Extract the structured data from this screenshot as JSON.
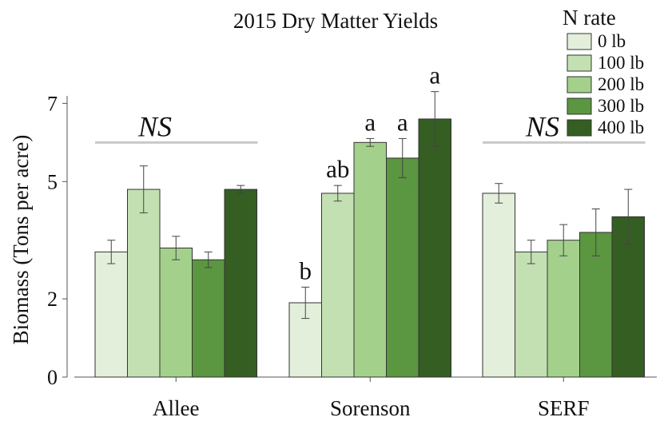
{
  "chart_data": {
    "type": "bar",
    "title": "2015 Dry Matter Yields",
    "xlabel": "",
    "ylabel": "Biomass (Tons per acre)",
    "yticks": [
      0,
      2,
      5,
      7
    ],
    "ylim": [
      0,
      7.6
    ],
    "categories": [
      "Allee",
      "Sorenson",
      "SERF"
    ],
    "legend": {
      "title": "N rate",
      "placement": "top-right"
    },
    "series": [
      {
        "name": "0 lb",
        "color": "#e3efdb",
        "values": [
          3.2,
          1.9,
          4.7
        ],
        "error": [
          0.3,
          0.4,
          0.25
        ]
      },
      {
        "name": "100 lb",
        "color": "#c3e0b3",
        "values": [
          4.8,
          4.7,
          3.2
        ],
        "error": [
          0.6,
          0.2,
          0.3
        ]
      },
      {
        "name": "200 lb",
        "color": "#a3d18c",
        "values": [
          3.3,
          6.0,
          3.5
        ],
        "error": [
          0.3,
          0.1,
          0.4
        ]
      },
      {
        "name": "300 lb",
        "color": "#5b9640",
        "values": [
          3.0,
          5.6,
          3.7
        ],
        "error": [
          0.2,
          0.5,
          0.6
        ]
      },
      {
        "name": "400 lb",
        "color": "#355e22",
        "values": [
          4.8,
          6.6,
          4.1
        ],
        "error": [
          0.1,
          0.7,
          0.7
        ]
      }
    ],
    "significance": [
      {
        "category": "Allee",
        "label": "NS",
        "level": 6.0
      },
      {
        "category": "Sorenson",
        "letters": [
          "b",
          "ab",
          "a",
          "a",
          "a"
        ]
      },
      {
        "category": "SERF",
        "label": "NS",
        "level": 6.0
      }
    ],
    "grid": false
  }
}
